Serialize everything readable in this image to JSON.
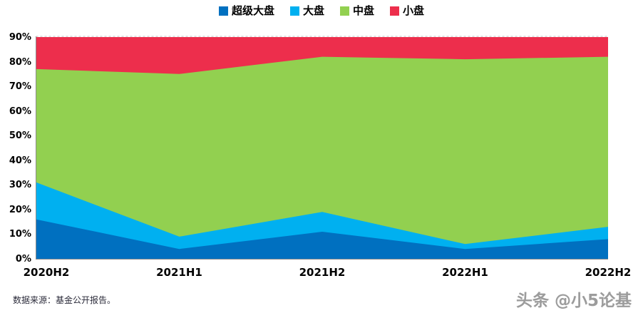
{
  "chart_data": {
    "type": "area",
    "stacked": true,
    "categories": [
      "2020H2",
      "2021H1",
      "2021H2",
      "2022H1",
      "2022H2"
    ],
    "series": [
      {
        "name": "超级大盘",
        "color": "#0070C0",
        "values": [
          16,
          4,
          11,
          4,
          8
        ]
      },
      {
        "name": "大盘",
        "color": "#00B0F0",
        "values": [
          15,
          5,
          8,
          2,
          5
        ]
      },
      {
        "name": "中盘",
        "color": "#92D050",
        "values": [
          46,
          66,
          63,
          75,
          69
        ]
      },
      {
        "name": "小盘",
        "color": "#ED2E4C",
        "values": [
          13,
          15,
          8,
          9,
          8
        ]
      }
    ],
    "cumulative_tops": {
      "超级大盘": [
        16,
        4,
        11,
        4,
        8
      ],
      "大盘": [
        31,
        9,
        19,
        6,
        13
      ],
      "中盘": [
        77,
        75,
        82,
        81,
        82
      ],
      "小盘": [
        90,
        90,
        90,
        90,
        90
      ]
    },
    "title": "",
    "xlabel": "",
    "ylabel": "",
    "ylim": [
      0,
      90
    ],
    "ytick_step": 10,
    "ytick_labels": [
      "0%",
      "10%",
      "20%",
      "30%",
      "40%",
      "50%",
      "60%",
      "70%",
      "80%",
      "90%"
    ],
    "grid": "top-dashed-border-only",
    "legend_position": "top-center",
    "axis_color": "#8c8c8c",
    "top_border_color": "#c0c0c0"
  },
  "footer": {
    "source": "数据来源：基金公开报告。",
    "watermark": "头条 @小5论基"
  }
}
